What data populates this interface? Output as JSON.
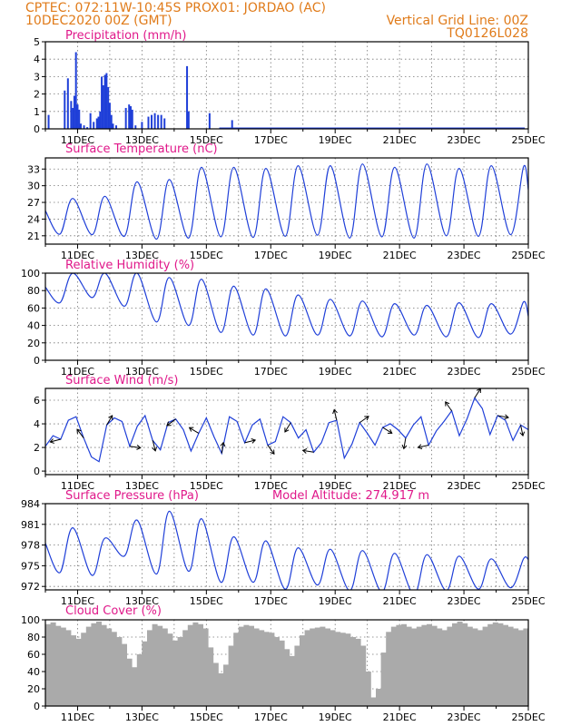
{
  "header": {
    "left_line1": "CPTEC:   072:11W-10:45S   PROX01: JORDAO (AC)",
    "left_line2": "10DEC2020 00Z (GMT)",
    "right_line1": "Vertical Grid Line: 00Z",
    "right_line2": "TQ0126L028"
  },
  "x_axis": {
    "tick_labels": [
      "11DEC",
      "13DEC",
      "15DEC",
      "17DEC",
      "19DEC",
      "21DEC",
      "23DEC",
      "25DEC"
    ],
    "day_range": [
      10,
      25
    ]
  },
  "colors": {
    "header": "#e07b1a",
    "title": "#e0188a",
    "series": "#1f3fd8",
    "cloud": "#aaaaaa"
  },
  "chart_data": [
    {
      "type": "bar",
      "title": "Precipitation (mm/h)",
      "ylim": [
        0,
        5
      ],
      "yticks": [
        "0",
        "1",
        "2",
        "3",
        "4",
        "5"
      ],
      "x_days": [
        10.1,
        10.6,
        10.7,
        10.8,
        10.85,
        10.9,
        10.95,
        11.0,
        11.05,
        11.1,
        11.2,
        11.3,
        11.4,
        11.5,
        11.6,
        11.65,
        11.7,
        11.75,
        11.8,
        11.85,
        11.9,
        11.95,
        12.0,
        12.05,
        12.1,
        12.2,
        12.5,
        12.6,
        12.65,
        12.7,
        12.8,
        13.0,
        13.2,
        13.3,
        13.4,
        13.5,
        13.6,
        13.7,
        14.4,
        14.45,
        15.1,
        15.8
      ],
      "values": [
        0.8,
        2.2,
        2.9,
        1.6,
        1.2,
        1.9,
        4.4,
        1.4,
        1.1,
        0.3,
        0.2,
        0.1,
        0.9,
        0.4,
        0.6,
        0.7,
        1.0,
        3.0,
        2.5,
        3.1,
        3.2,
        2.4,
        1.5,
        0.8,
        0.3,
        0.2,
        1.2,
        1.4,
        1.3,
        1.1,
        0.2,
        0.4,
        0.7,
        0.8,
        0.9,
        0.8,
        0.8,
        0.6,
        3.6,
        1.0,
        0.9,
        0.5
      ]
    },
    {
      "type": "line",
      "title": "Surface Temperature (nC)",
      "ylim": [
        19.5,
        35
      ],
      "yticks": [
        "21",
        "24",
        "27",
        "30",
        "33"
      ],
      "series": [
        {
          "peaks": [
            27.7,
            28.1,
            30.7,
            31.1,
            33.3,
            33.3,
            33.1,
            33.6,
            33.6,
            33.9,
            33.3,
            33.9,
            33.1,
            33.6,
            33.4
          ],
          "troughs": [
            21.3,
            21.2,
            20.9,
            20.4,
            20.6,
            20.8,
            20.7,
            20.9,
            21.1,
            20.6,
            20.8,
            20.6,
            21.0,
            20.9,
            21.2
          ]
        }
      ]
    },
    {
      "type": "line",
      "title": "Relative Humidity (%)",
      "ylim": [
        0,
        100
      ],
      "yticks": [
        "0",
        "20",
        "40",
        "60",
        "80",
        "100"
      ],
      "series": [
        {
          "peaks": [
            100,
            100,
            100,
            95,
            93,
            85,
            82,
            75,
            70,
            68,
            65,
            63,
            66,
            65,
            67
          ],
          "troughs": [
            66,
            72,
            62,
            44,
            40,
            32,
            29,
            28,
            29,
            28,
            27,
            29,
            27,
            26,
            30
          ]
        }
      ]
    },
    {
      "type": "line",
      "title": "Surface Wind (m/s)",
      "ylim": [
        -0.3,
        7
      ],
      "yticks": [
        "0",
        "2",
        "4",
        "6"
      ],
      "series": [
        {
          "values": [
            2.1,
            3.0,
            2.7,
            4.3,
            4.6,
            2.8,
            1.2,
            0.8,
            3.9,
            4.5,
            4.2,
            2.1,
            3.8,
            4.7,
            2.6,
            1.8,
            4.1,
            4.4,
            3.5,
            1.7,
            3.2,
            4.5,
            2.9,
            1.5,
            4.6,
            4.2,
            2.4,
            3.9,
            4.4,
            2.2,
            2.5,
            4.6,
            4.1,
            2.8,
            3.5,
            1.6,
            2.4,
            4.1,
            4.3,
            1.1,
            2.3,
            4.1,
            3.2,
            2.2,
            3.7,
            4.0,
            3.5,
            2.8,
            3.9,
            4.6,
            2.2,
            3.4,
            4.2,
            5.1,
            3.0,
            4.4,
            6.2,
            5.3,
            3.1,
            4.7,
            4.3,
            2.6,
            3.9,
            3.5
          ]
        }
      ]
    },
    {
      "type": "line",
      "title": "Surface Pressure (hPa)",
      "annotation": "Model Altitude: 274.917 m",
      "ylim": [
        971.5,
        984
      ],
      "yticks": [
        "972",
        "975",
        "978",
        "981",
        "984"
      ],
      "series": [
        {
          "peaks": [
            980.5,
            979.0,
            981.6,
            982.9,
            981.8,
            979.2,
            978.6,
            977.6,
            977.4,
            977.2,
            976.8,
            976.6,
            976.4,
            976.0,
            976.0
          ],
          "troughs": [
            974.0,
            973.6,
            976.4,
            973.8,
            974.2,
            972.6,
            972.6,
            971.6,
            972.2,
            971.4,
            971.2,
            970.8,
            971.4,
            971.6,
            971.8
          ]
        }
      ]
    },
    {
      "type": "bar",
      "title": "Cloud Cover (%)",
      "ylim": [
        0,
        100
      ],
      "yticks": [
        "0",
        "20",
        "40",
        "60",
        "80",
        "100"
      ],
      "values": [
        95,
        97,
        93,
        91,
        88,
        82,
        78,
        85,
        92,
        96,
        98,
        94,
        90,
        86,
        80,
        72,
        55,
        45,
        60,
        75,
        88,
        95,
        93,
        90,
        84,
        76,
        80,
        88,
        94,
        97,
        95,
        90,
        68,
        50,
        38,
        48,
        70,
        85,
        92,
        94,
        93,
        90,
        88,
        86,
        85,
        80,
        76,
        66,
        58,
        70,
        82,
        88,
        90,
        91,
        92,
        90,
        88,
        86,
        85,
        84,
        80,
        78,
        70,
        40,
        10,
        20,
        62,
        86,
        92,
        94,
        95,
        92,
        90,
        92,
        94,
        95,
        93,
        90,
        88,
        92,
        96,
        98,
        96,
        92,
        90,
        88,
        92,
        95,
        97,
        96,
        94,
        92,
        90,
        88,
        90
      ]
    }
  ]
}
